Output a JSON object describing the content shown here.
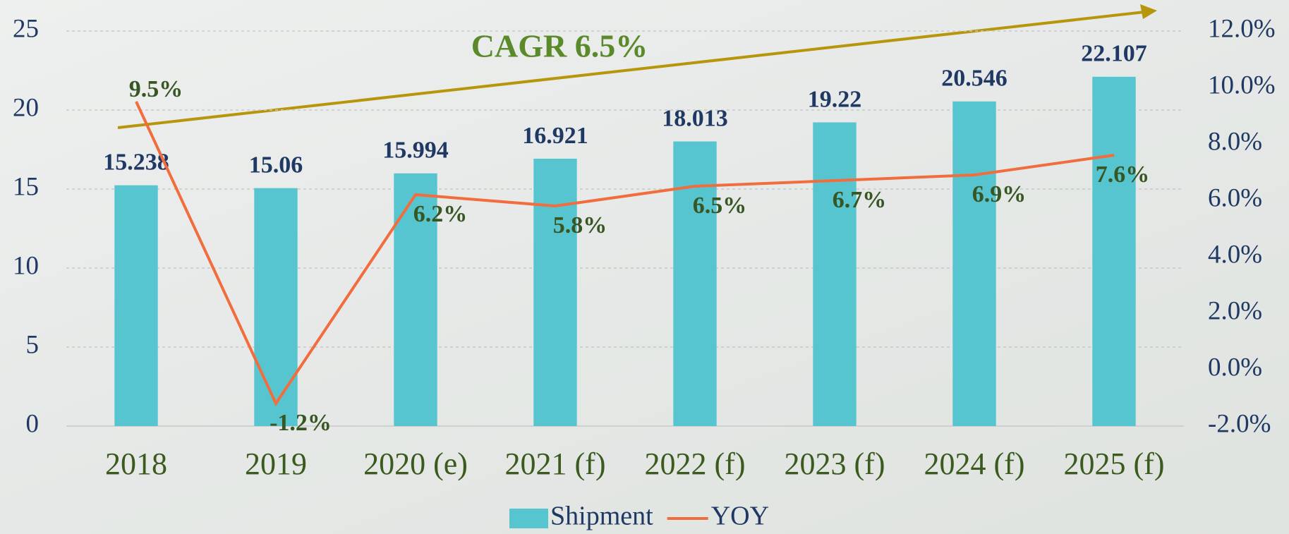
{
  "chart_data": {
    "type": "bar",
    "annotation": "CAGR 6.5%",
    "categories": [
      "2018",
      "2019",
      "2020 (e)",
      "2021 (f)",
      "2022 (f)",
      "2023 (f)",
      "2024 (f)",
      "2025 (f)"
    ],
    "series": [
      {
        "name": "Shipment",
        "type": "bar",
        "color": "#56c5d0",
        "values": [
          15.238,
          15.06,
          15.994,
          16.921,
          18.013,
          19.22,
          20.546,
          22.107
        ]
      },
      {
        "name": "YOY",
        "type": "line",
        "axis": "y2",
        "color": "#f26d3d",
        "values": [
          9.5,
          -1.2,
          6.2,
          5.8,
          6.5,
          6.7,
          6.9,
          7.6
        ],
        "value_labels": [
          "9.5%",
          "-1.2%",
          "6.2%",
          "5.8%",
          "6.5%",
          "6.7%",
          "6.9%",
          "7.6%"
        ]
      }
    ],
    "ylim": [
      0,
      25
    ],
    "yticks": [
      0,
      5,
      10,
      15,
      20,
      25
    ],
    "y2lim": [
      -2,
      12
    ],
    "y2ticks": [
      {
        "value": -2,
        "label": "-2.0%"
      },
      {
        "value": 0,
        "label": "0.0%"
      },
      {
        "value": 2,
        "label": "2.0%"
      },
      {
        "value": 4,
        "label": "4.0%"
      },
      {
        "value": 6,
        "label": "6.0%"
      },
      {
        "value": 8,
        "label": "8.0%"
      },
      {
        "value": 10,
        "label": "10.0%"
      },
      {
        "value": 12,
        "label": "12.0%"
      }
    ],
    "grid": true,
    "legend": "bottom"
  }
}
